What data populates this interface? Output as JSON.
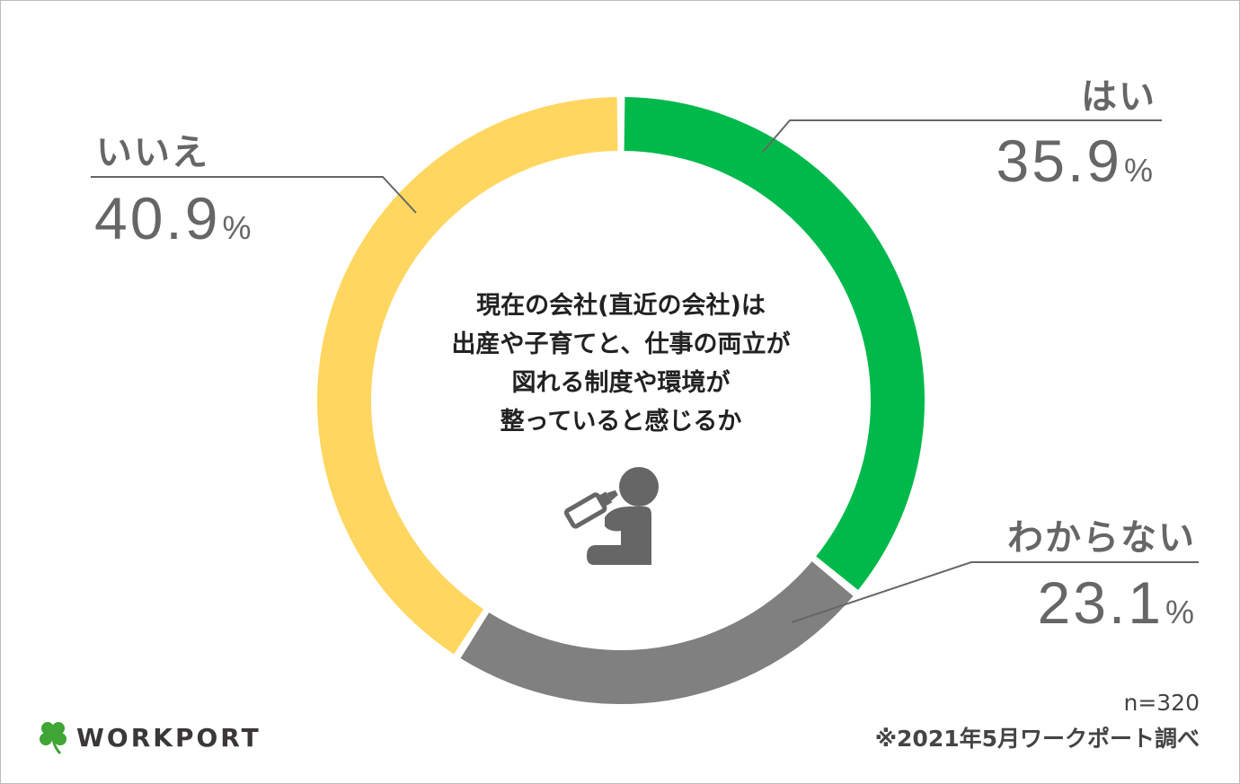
{
  "chart_data": {
    "type": "pie",
    "variant": "donut",
    "title": "現在の会社(直近の会社)は\n出産や子育てと、仕事の両立が\n図れる制度や環境が\n整っていると感じるか",
    "title_lines": [
      "現在の会社(直近の会社)は",
      "出産や子育てと、仕事の両立が",
      "図れる制度や環境が",
      "整っていると感じるか"
    ],
    "slices": [
      {
        "label": "はい",
        "value": 35.9,
        "color": "#00B94B"
      },
      {
        "label": "わからない",
        "value": 23.1,
        "color": "#808080"
      },
      {
        "label": "いいえ",
        "value": 40.9,
        "color": "#FFD65F"
      }
    ],
    "unit": "%",
    "start": "top",
    "direction": "clockwise"
  },
  "footer": {
    "n": "n=320",
    "source": "※2021年5月ワークポート調べ"
  },
  "logo": {
    "text": "WORKPORT",
    "icon": "clover-icon"
  },
  "center_icon": "baby-bottle-icon"
}
